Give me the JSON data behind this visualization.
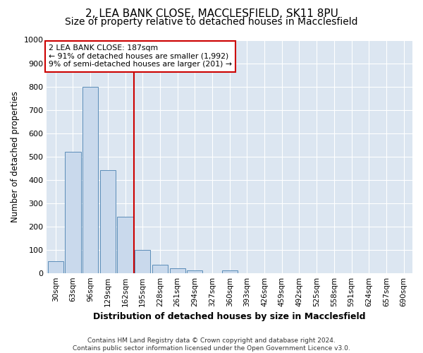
{
  "title_line1": "2, LEA BANK CLOSE, MACCLESFIELD, SK11 8PU",
  "title_line2": "Size of property relative to detached houses in Macclesfield",
  "xlabel": "Distribution of detached houses by size in Macclesfield",
  "ylabel": "Number of detached properties",
  "footer_line1": "Contains HM Land Registry data © Crown copyright and database right 2024.",
  "footer_line2": "Contains public sector information licensed under the Open Government Licence v3.0.",
  "bin_labels": [
    "30sqm",
    "63sqm",
    "96sqm",
    "129sqm",
    "162sqm",
    "195sqm",
    "228sqm",
    "261sqm",
    "294sqm",
    "327sqm",
    "360sqm",
    "393sqm",
    "426sqm",
    "459sqm",
    "492sqm",
    "525sqm",
    "558sqm",
    "591sqm",
    "624sqm",
    "657sqm",
    "690sqm"
  ],
  "bar_values": [
    50,
    520,
    800,
    440,
    240,
    100,
    35,
    20,
    10,
    0,
    10,
    0,
    0,
    0,
    0,
    0,
    0,
    0,
    0,
    0,
    0
  ],
  "bar_color": "#c9d9ec",
  "bar_edge_color": "#5b8db8",
  "vline_color": "#cc0000",
  "annotation_title": "2 LEA BANK CLOSE: 187sqm",
  "annotation_line1": "← 91% of detached houses are smaller (1,992)",
  "annotation_line2": "9% of semi-detached houses are larger (201) →",
  "annotation_box_color": "#cc0000",
  "ylim": [
    0,
    1000
  ],
  "yticks": [
    0,
    100,
    200,
    300,
    400,
    500,
    600,
    700,
    800,
    900,
    1000
  ],
  "plot_background": "#dce6f1",
  "figure_background": "#ffffff",
  "grid_color": "#ffffff",
  "title_fontsize": 11,
  "subtitle_fontsize": 10,
  "tick_fontsize": 7.5,
  "vline_bin_index": 5
}
